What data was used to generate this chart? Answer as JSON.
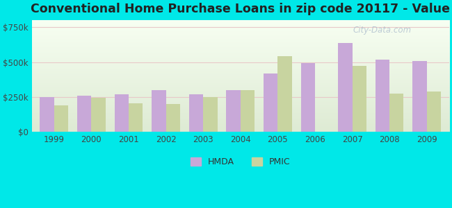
{
  "title": "Conventional Home Purchase Loans in zip code 20117 - Value",
  "years": [
    1999,
    2000,
    2001,
    2002,
    2003,
    2004,
    2005,
    2006,
    2007,
    2008,
    2009
  ],
  "hmda": [
    248000,
    262000,
    268000,
    298000,
    268000,
    302000,
    418000,
    492000,
    638000,
    518000,
    508000
  ],
  "pmic": [
    192000,
    243000,
    207000,
    202000,
    252000,
    298000,
    543000,
    0,
    472000,
    277000,
    292000
  ],
  "hmda_color": "#c8a8d8",
  "pmic_color": "#c8d4a0",
  "plot_bg_top": "#f0fff0",
  "plot_bg_bottom": "#c8ead0",
  "outer_background": "#00e8e8",
  "yticks": [
    0,
    250000,
    500000,
    750000
  ],
  "ylabels": [
    "$0",
    "$250k",
    "$500k",
    "$750k"
  ],
  "ylim": [
    0,
    800000
  ],
  "bar_width": 0.38,
  "title_fontsize": 12.5,
  "legend_labels": [
    "HMDA",
    "PMIC"
  ],
  "watermark": "City-Data.com",
  "grid_color": "#e0e0e0"
}
